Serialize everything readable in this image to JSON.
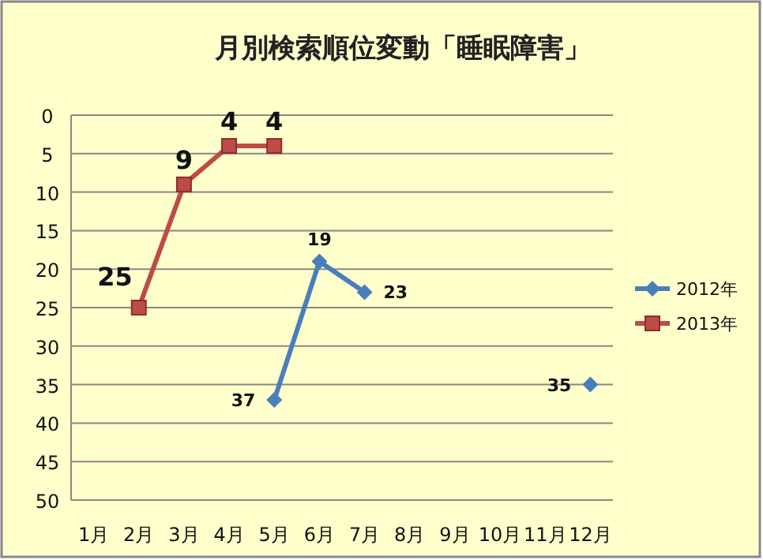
{
  "chart_data": {
    "type": "line",
    "title": "月別検索順位変動「睡眠障害」",
    "categories": [
      "1月",
      "2月",
      "3月",
      "4月",
      "5月",
      "6月",
      "7月",
      "8月",
      "9月",
      "10月",
      "11月",
      "12月"
    ],
    "series": [
      {
        "name": "2012年",
        "color": "#4a7ebb",
        "marker": "diamond",
        "values": [
          null,
          null,
          null,
          null,
          37,
          19,
          23,
          null,
          null,
          null,
          null,
          35
        ]
      },
      {
        "name": "2013年",
        "color": "#be4b48",
        "marker": "square",
        "values": [
          null,
          25,
          9,
          4,
          4,
          null,
          null,
          null,
          null,
          null,
          null,
          null
        ]
      }
    ],
    "ylim": [
      50,
      0
    ],
    "yticks": [
      0,
      5,
      10,
      15,
      20,
      25,
      30,
      35,
      40,
      45,
      50
    ],
    "grid": "y",
    "legend": "right",
    "data_labels": true
  }
}
